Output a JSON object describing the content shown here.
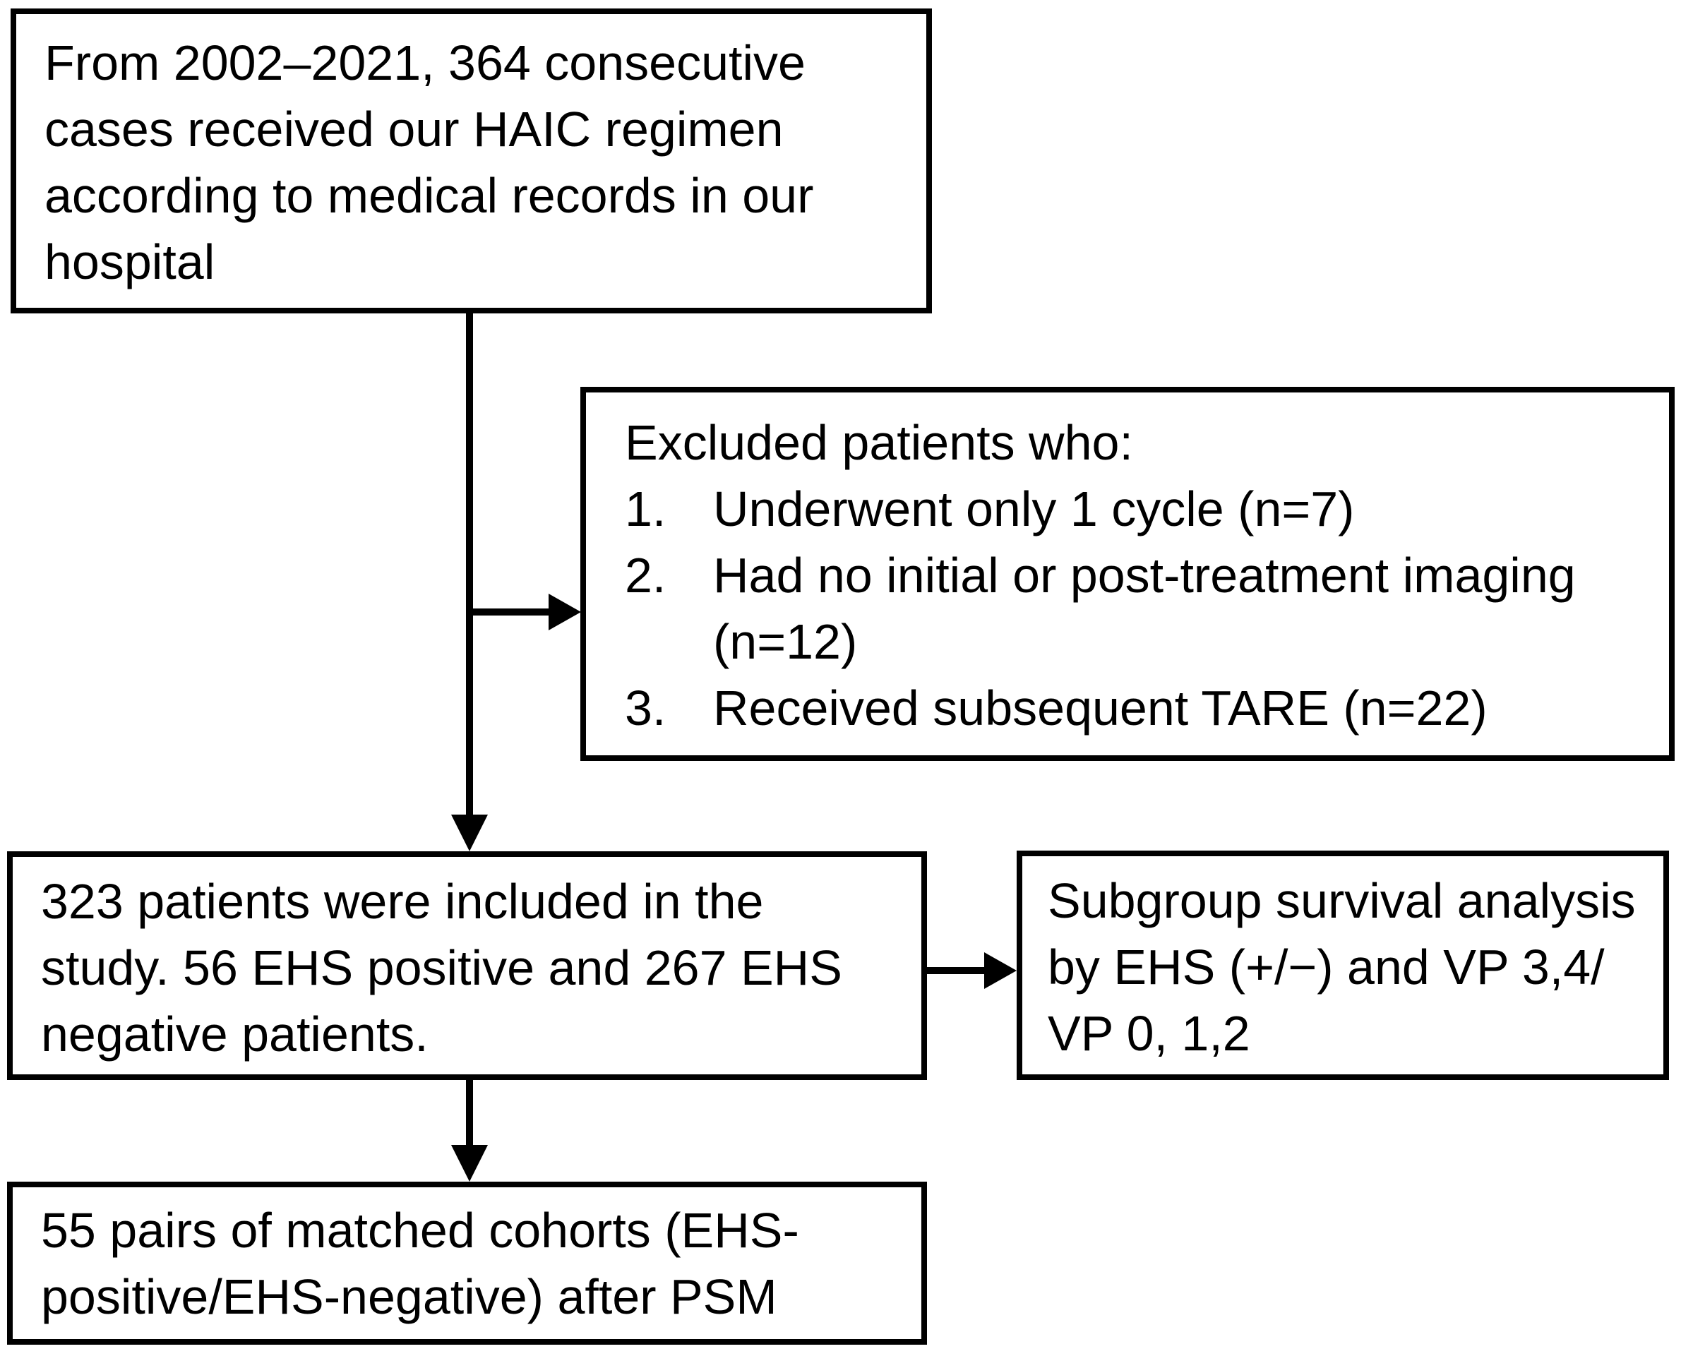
{
  "colors": {
    "background": "#ffffff",
    "ink": "#000000"
  },
  "boxes": {
    "source": {
      "text": "From 2002–2021, 364 consecutive\ncases received our HAIC regimen\naccording to medical records in our\nhospital"
    },
    "exclusion": {
      "heading": "Excluded patients who:",
      "items": [
        {
          "number": "1.",
          "text": "Underwent only 1 cycle (n=7)"
        },
        {
          "number": "2.",
          "text": "Had no initial or post-treatment imaging\n(n=12)"
        },
        {
          "number": "3.",
          "text": "Received subsequent TARE (n=22)"
        }
      ]
    },
    "included": {
      "text": "323 patients were included in the\nstudy. 56 EHS positive and 267 EHS\nnegative patients."
    },
    "subgroup": {
      "text": "Subgroup survival analysis\nby EHS (+/−) and VP 3,4/\nVP 0, 1,2"
    },
    "matched": {
      "text": "55 pairs of matched cohorts (EHS-\npositive/EHS-negative) after PSM"
    }
  }
}
